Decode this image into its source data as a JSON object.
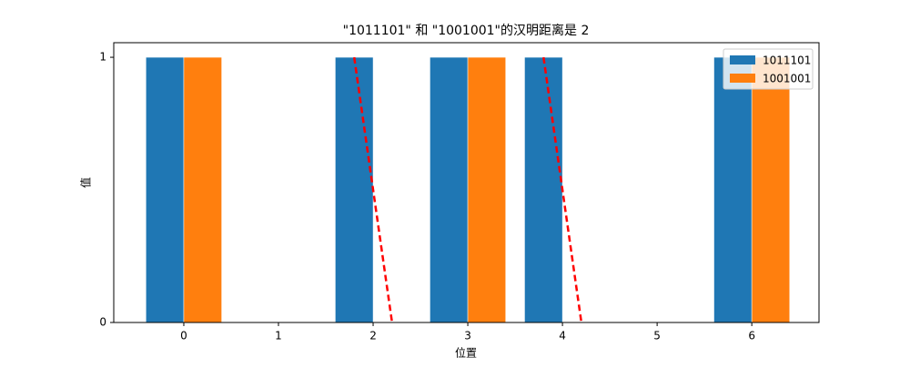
{
  "chart_data": {
    "type": "bar",
    "title": "\"1011101\" 和 \"1001001\"的汉明距离是 2",
    "x_label": "位置",
    "y_label": "值",
    "x": [
      0,
      1,
      2,
      3,
      4,
      5,
      6
    ],
    "series": [
      {
        "name": "1011101",
        "color": "#1f77b4",
        "values": [
          1,
          0,
          1,
          1,
          1,
          0,
          1
        ]
      },
      {
        "name": "1001001",
        "color": "#ff7f0e",
        "values": [
          1,
          0,
          0,
          1,
          0,
          0,
          1
        ]
      }
    ],
    "highlight_positions": [
      2,
      4
    ],
    "highlight_color": "#ff0000",
    "xlim": [
      -0.74,
      6.71
    ],
    "xticks": [
      0,
      1,
      2,
      3,
      4,
      5,
      6
    ],
    "ylim": [
      0,
      1.055
    ],
    "yticks": [
      0,
      1
    ],
    "legend": "upper right"
  }
}
